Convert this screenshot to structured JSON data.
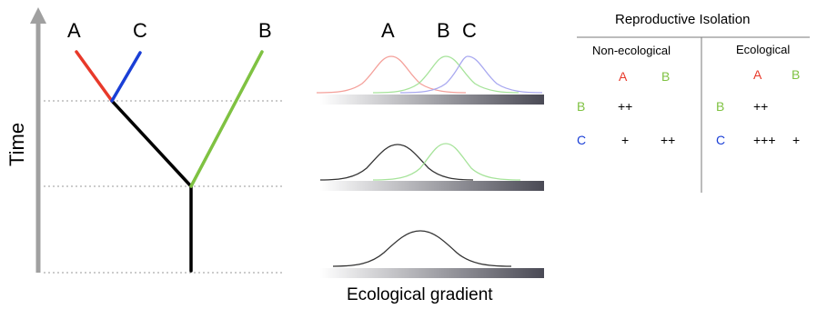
{
  "tree": {
    "axis_label": "Time",
    "tips": [
      {
        "name": "A",
        "color": "#e8392a"
      },
      {
        "name": "C",
        "color": "#1a3fd6"
      },
      {
        "name": "B",
        "color": "#7fc242"
      }
    ],
    "trunk_color": "#000000"
  },
  "distributions": {
    "axis_label": "Ecological gradient",
    "top_labels": [
      "A",
      "B",
      "C"
    ],
    "panels": [
      {
        "curves": [
          {
            "species": "A",
            "color": "#f4a09a"
          },
          {
            "species": "B",
            "color": "#a6e39a"
          },
          {
            "species": "C",
            "color": "#a8a8f0"
          }
        ]
      },
      {
        "curves": [
          {
            "color": "#333333"
          },
          {
            "color": "#a6e39a"
          }
        ]
      },
      {
        "curves": [
          {
            "color": "#333333"
          }
        ]
      }
    ]
  },
  "isolation_table": {
    "title": "Reproductive Isolation",
    "sections": [
      {
        "header": "Non-ecological",
        "col_labels": [
          "A",
          "B"
        ],
        "rows": [
          {
            "label": "B",
            "cells": [
              "++",
              ""
            ]
          },
          {
            "label": "C",
            "cells": [
              "+",
              "++"
            ]
          }
        ]
      },
      {
        "header": "Ecological",
        "col_labels": [
          "A",
          "B"
        ],
        "rows": [
          {
            "label": "B",
            "cells": [
              "++",
              ""
            ]
          },
          {
            "label": "C",
            "cells": [
              "+++",
              "+"
            ]
          }
        ]
      }
    ],
    "colors": {
      "A": "#e8392a",
      "B": "#7fc242",
      "C": "#1a3fd6"
    }
  }
}
